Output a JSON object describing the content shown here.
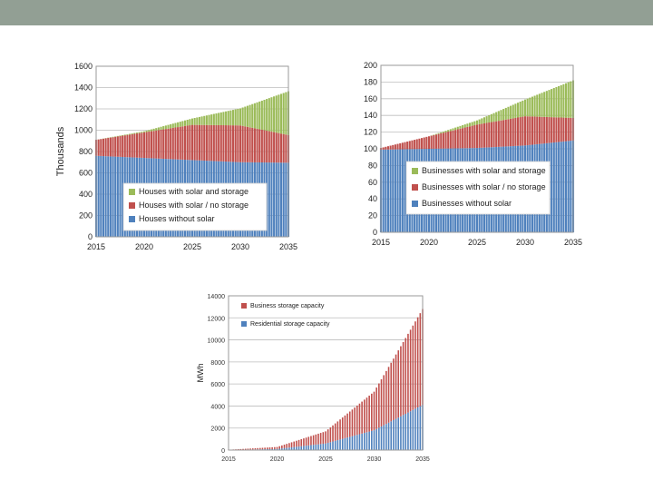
{
  "colors": {
    "header": "#929f94",
    "without_solar": "#4f81bd",
    "solar_no_storage": "#c0504d",
    "solar_and_storage": "#9bbb59",
    "residential_storage": "#4f81bd",
    "business_storage": "#c0504d"
  },
  "chart_data": [
    {
      "type": "area",
      "stacked": true,
      "x": [
        2015,
        2020,
        2025,
        2030,
        2035
      ],
      "xticks": [
        "2015",
        "2020",
        "2025",
        "2030",
        "2035"
      ],
      "ylim": [
        0,
        1600
      ],
      "yticks": [
        "0",
        "200",
        "400",
        "600",
        "800",
        "1000",
        "1200",
        "1400",
        "1600"
      ],
      "ylabel": "Thousands",
      "grid": true,
      "legend_position": "bottom-center",
      "series": [
        {
          "name": "Houses with solar and storage",
          "values": [
            0,
            10,
            60,
            160,
            410
          ]
        },
        {
          "name": "Houses with solar / no storage",
          "values": [
            150,
            240,
            330,
            345,
            260
          ]
        },
        {
          "name": "Houses without solar",
          "values": [
            760,
            740,
            720,
            700,
            695
          ]
        }
      ]
    },
    {
      "type": "area",
      "stacked": true,
      "x": [
        2015,
        2020,
        2025,
        2030,
        2035
      ],
      "xticks": [
        "2015",
        "2020",
        "2025",
        "2030",
        "2035"
      ],
      "ylim": [
        0,
        200
      ],
      "yticks": [
        "0",
        "20",
        "40",
        "60",
        "80",
        "100",
        "120",
        "140",
        "160",
        "180",
        "200"
      ],
      "grid": true,
      "legend_position": "bottom-center",
      "series": [
        {
          "name": "Businesses with solar and storage",
          "values": [
            0,
            0,
            5,
            20,
            45
          ]
        },
        {
          "name": "Businesses with solar / no storage",
          "values": [
            2,
            15,
            28,
            35,
            27
          ]
        },
        {
          "name": "Businesses without solar",
          "values": [
            99,
            100,
            101,
            104,
            110
          ]
        }
      ]
    },
    {
      "type": "bar",
      "stacked": true,
      "x": [
        2015,
        2020,
        2025,
        2030,
        2035
      ],
      "xticks": [
        "2015",
        "2020",
        "2025",
        "2030",
        "2035"
      ],
      "ylim": [
        0,
        14000
      ],
      "yticks": [
        "0",
        "2000",
        "4000",
        "6000",
        "8000",
        "10000",
        "12000",
        "14000"
      ],
      "ylabel": "MWh",
      "grid": true,
      "legend_position": "top-left",
      "series": [
        {
          "name": "Business storage capacity",
          "values": [
            20,
            180,
            1100,
            3500,
            8700
          ]
        },
        {
          "name": "Residential storage capacity",
          "values": [
            10,
            100,
            600,
            1800,
            4100
          ]
        }
      ]
    }
  ]
}
